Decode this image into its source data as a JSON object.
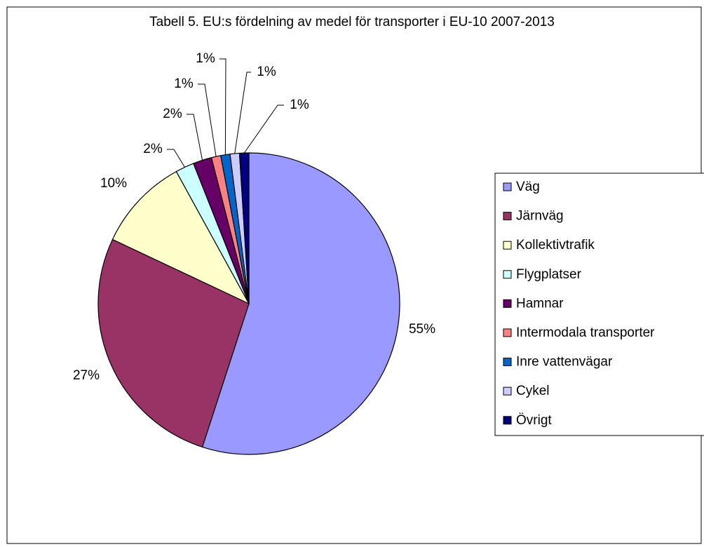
{
  "chart_data": {
    "type": "pie",
    "title": "Tabell 5. EU:s fördelning av medel för transporter i EU-10 2007-2013",
    "categories": [
      "Väg",
      "Järnväg",
      "Kollektivtrafik",
      "Flygplatser",
      "Hamnar",
      "Intermodala transporter",
      "Inre vattenvägar",
      "Cykel",
      "Övrigt"
    ],
    "values": [
      55,
      27,
      10,
      2,
      2,
      1,
      1,
      1,
      1
    ],
    "value_labels": [
      "55%",
      "27%",
      "10%",
      "2%",
      "2%",
      "1%",
      "1%",
      "1%",
      "1%"
    ],
    "colors": [
      "#9999ff",
      "#993366",
      "#ffffcc",
      "#ccffff",
      "#660066",
      "#ff8080",
      "#0066cc",
      "#ccccff",
      "#000080"
    ]
  }
}
